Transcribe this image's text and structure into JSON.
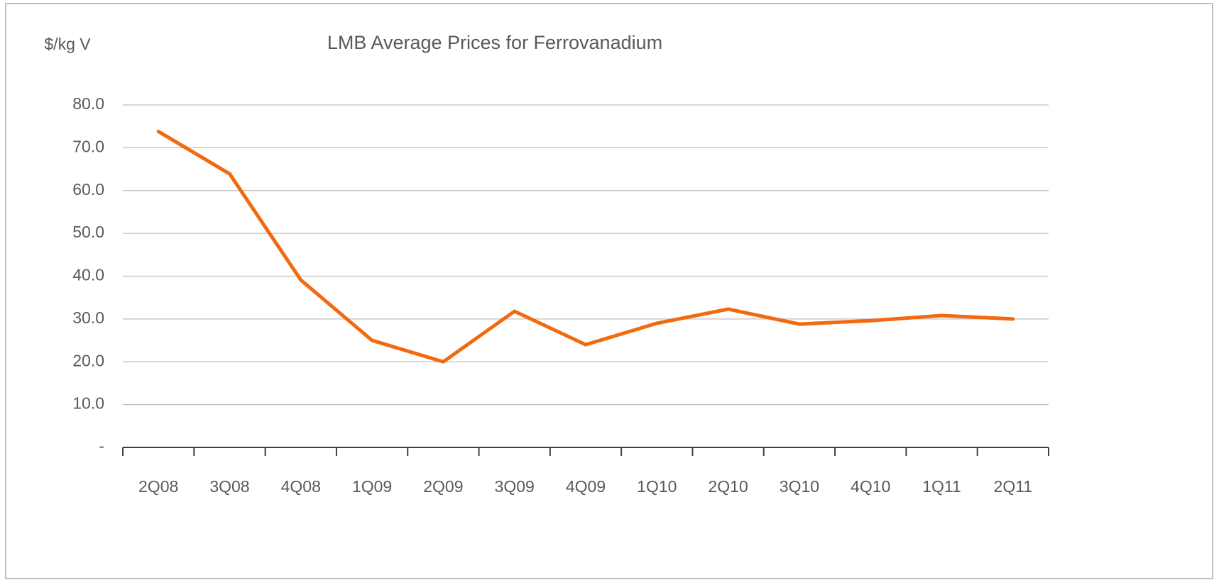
{
  "chart_data": {
    "type": "line",
    "title": "LMB Average Prices for Ferrovanadium",
    "y_label": "$/kg V",
    "categories": [
      "2Q08",
      "3Q08",
      "4Q08",
      "1Q09",
      "2Q09",
      "3Q09",
      "4Q09",
      "1Q10",
      "2Q10",
      "3Q10",
      "4Q10",
      "1Q11",
      "2Q11"
    ],
    "values": [
      73.8,
      63.9,
      39.1,
      25.0,
      20.0,
      31.8,
      24.0,
      29.0,
      32.3,
      28.8,
      29.6,
      30.8,
      30.0
    ],
    "color": "#f26a10",
    "ylim": [
      0,
      80
    ],
    "yticks": [
      {
        "value": 0,
        "label": "-"
      },
      {
        "value": 10,
        "label": "10.0"
      },
      {
        "value": 20,
        "label": "20.0"
      },
      {
        "value": 30,
        "label": "30.0"
      },
      {
        "value": 40,
        "label": "40.0"
      },
      {
        "value": 50,
        "label": "50.0"
      },
      {
        "value": 60,
        "label": "60.0"
      },
      {
        "value": 70,
        "label": "70.0"
      },
      {
        "value": 80,
        "label": "80.0"
      }
    ],
    "grid": true
  }
}
